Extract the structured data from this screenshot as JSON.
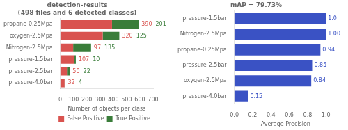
{
  "chart_data": [
    {
      "type": "bar",
      "orientation": "horizontal",
      "stacked": true,
      "title": "detection-results\n(498 files and 6 detected classes)",
      "categories": [
        "propane-0.25Mpa",
        "oxygen-2.5Mpa",
        "Nitrogen-2.5Mpa",
        "pressure-1.5bar",
        "pressure-2.5bar",
        "pressure-4.0bar"
      ],
      "series": [
        {
          "name": "False Positive",
          "color": "#d9534f",
          "values": [
            390,
            320,
            97,
            107,
            50,
            32
          ]
        },
        {
          "name": "True Positive",
          "color": "#3a7d3a",
          "values": [
            201,
            125,
            135,
            10,
            22,
            4
          ]
        }
      ],
      "xlabel": "Number of objects per class",
      "xlim": [
        0,
        700
      ],
      "xticks": [
        0,
        100,
        200,
        300,
        400,
        500,
        600,
        700
      ],
      "grid": false,
      "legend": "lower right",
      "data_labels": true
    },
    {
      "type": "bar",
      "orientation": "horizontal",
      "title": "mAP = 79.73%",
      "categories": [
        "pressure-1.5bar",
        "Nitrogen-2.5Mpa",
        "propane-0.25Mpa",
        "pressure-2.5bar",
        "oxygen-2.5Mpa",
        "pressure-4.0bar"
      ],
      "values": [
        1.0,
        1.0,
        0.94,
        0.85,
        0.84,
        0.15
      ],
      "value_labels": [
        "1.0",
        "1.00",
        "0.94",
        "0.85",
        "0.84",
        "0.15"
      ],
      "color": "#3a52c4",
      "xlabel": "Average Precision",
      "xlim": [
        0.0,
        1.12
      ],
      "xticks": [
        {
          "value": 0.0,
          "label": "0.0"
        },
        0.2,
        0.4,
        0.6,
        0.8,
        {
          "value": 1.0,
          "label": "1.0"
        }
      ],
      "grid": false,
      "data_labels": true
    }
  ]
}
